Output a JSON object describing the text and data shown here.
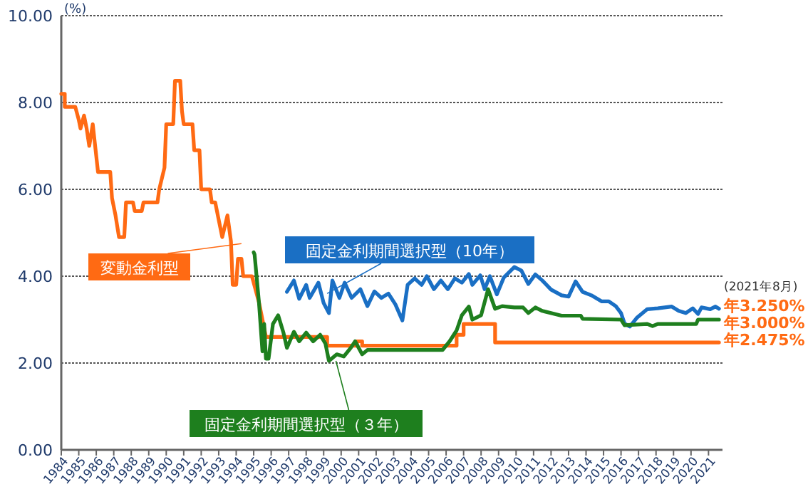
{
  "chart_data": {
    "type": "line",
    "ylabel": "(%)",
    "xlim": [
      1984,
      2021.8
    ],
    "ylim": [
      0,
      10
    ],
    "yticks": [
      {
        "value": 0,
        "label": "0.00"
      },
      {
        "value": 2,
        "label": "2.00"
      },
      {
        "value": 4,
        "label": "4.00"
      },
      {
        "value": 6,
        "label": "6.00"
      },
      {
        "value": 8,
        "label": "8.00"
      },
      {
        "value": 10,
        "label": "10.00"
      }
    ],
    "xticks": [
      1984,
      1985,
      1986,
      1987,
      1988,
      1989,
      1990,
      1991,
      1992,
      1993,
      1994,
      1995,
      1996,
      1997,
      1998,
      1999,
      2000,
      2001,
      2002,
      2003,
      2004,
      2005,
      2006,
      2007,
      2008,
      2009,
      2010,
      2011,
      2012,
      2013,
      2014,
      2015,
      2016,
      2017,
      2018,
      2019,
      2020,
      2021
    ],
    "grid": "y",
    "line_style": "solid",
    "marker": "none",
    "series": [
      {
        "name": "変動金利型",
        "color": "#ff6a13",
        "x": [
          1984,
          1984.2,
          1984.2,
          1984.8,
          1985,
          1985.1,
          1985.3,
          1985.45,
          1985.6,
          1985.8,
          1986.1,
          1986.8,
          1986.9,
          1987.1,
          1987.3,
          1987.6,
          1987.7,
          1988.1,
          1988.2,
          1988.6,
          1988.7,
          1989.5,
          1989.6,
          1989.9,
          1990,
          1990.4,
          1990.5,
          1990.8,
          1990.9,
          1991,
          1991.5,
          1991.6,
          1991.9,
          1992,
          1992.5,
          1992.6,
          1992.8,
          1993,
          1993.2,
          1993.5,
          1993.7,
          1993.8,
          1994,
          1994.1,
          1994.3,
          1994.4,
          1994.9,
          1995.3,
          1995.7,
          1999.2,
          1999.2,
          2000.9,
          2000.9,
          2001.2,
          2001.2,
          2006.6,
          2006.6,
          2007,
          2007,
          2008.8,
          2008.8,
          2021.6
        ],
        "values": [
          8.2,
          8.2,
          7.9,
          7.9,
          7.6,
          7.4,
          7.7,
          7.4,
          7,
          7.5,
          6.4,
          6.4,
          5.8,
          5.4,
          4.9,
          4.9,
          5.7,
          5.7,
          5.5,
          5.5,
          5.7,
          5.7,
          6,
          6.5,
          7.5,
          7.5,
          8.5,
          8.5,
          7.8,
          7.5,
          7.5,
          6.9,
          6.9,
          6,
          6,
          5.7,
          5.7,
          5.3,
          4.9,
          5.4,
          4.8,
          3.8,
          3.8,
          4.4,
          4.4,
          4,
          4,
          3.4,
          2.6,
          2.6,
          2.4,
          2.4,
          2.5,
          2.5,
          2.4,
          2.4,
          2.65,
          2.65,
          2.9,
          2.9,
          2.475,
          2.475
        ]
      },
      {
        "name": "固定金利期間選択型（10年）",
        "color": "#1a6fc4",
        "x": [
          1996.9,
          1997.3,
          1997.6,
          1998,
          1998.2,
          1998.7,
          1999,
          1999.3,
          1999.5,
          1999.9,
          2000.2,
          2000.6,
          2001.1,
          2001.5,
          2001.9,
          2002.3,
          2002.7,
          2003.1,
          2003.5,
          2003.8,
          2004.2,
          2004.6,
          2004.9,
          2005.3,
          2005.7,
          2006.1,
          2006.5,
          2006.9,
          2007.3,
          2007.5,
          2007.95,
          2008.2,
          2008.5,
          2008.9,
          2009.3,
          2009.9,
          2010.3,
          2010.7,
          2011.1,
          2011.5,
          2012,
          2012.6,
          2013,
          2013.4,
          2013.8,
          2014.3,
          2014.9,
          2015.3,
          2015.7,
          2016,
          2016.2,
          2016.5,
          2016.9,
          2017.5,
          2018.1,
          2018.9,
          2019.3,
          2019.7,
          2020.1,
          2020.4,
          2020.6,
          2021.1,
          2021.4,
          2021.6
        ],
        "values": [
          3.64,
          3.9,
          3.48,
          3.8,
          3.5,
          3.85,
          3.38,
          3.15,
          3.9,
          3.5,
          3.85,
          3.5,
          3.7,
          3.31,
          3.65,
          3.5,
          3.6,
          3.35,
          2.98,
          3.8,
          3.95,
          3.8,
          4,
          3.7,
          3.9,
          3.7,
          3.95,
          3.85,
          4.05,
          3.8,
          4.02,
          3.7,
          4,
          3.58,
          3.97,
          4.21,
          4.13,
          3.82,
          4.04,
          3.9,
          3.69,
          3.56,
          3.53,
          3.88,
          3.64,
          3.56,
          3.42,
          3.42,
          3.31,
          3.15,
          2.91,
          2.84,
          3.04,
          3.24,
          3.26,
          3.3,
          3.2,
          3.15,
          3.26,
          3.13,
          3.28,
          3.24,
          3.3,
          3.25
        ]
      },
      {
        "name": "固定金利期間選択型（３年）",
        "color": "#1e7f1e",
        "x": [
          1995,
          1995.05,
          1995.3,
          1995.5,
          1995.6,
          1995.7,
          1995.85,
          1996.1,
          1996.4,
          1996.7,
          1996.9,
          1997.3,
          1997.6,
          1998,
          1998.4,
          1998.8,
          1999.1,
          1999.3,
          1999.75,
          2000.15,
          2000.55,
          2000.8,
          2001.2,
          2001.5,
          2005.8,
          2006.2,
          2006.6,
          2006.9,
          2007.3,
          2007.5,
          2008,
          2008.4,
          2008.8,
          2009.2,
          2009.9,
          2010.4,
          2010.7,
          2011.1,
          2011.5,
          2012.6,
          2013.7,
          2013.8,
          2016,
          2016.2,
          2017.5,
          2017.8,
          2018.1,
          2020.3,
          2020.4,
          2021.6
        ],
        "values": [
          4.55,
          4.5,
          3.4,
          2.27,
          2.9,
          2.1,
          2.1,
          2.9,
          3.1,
          2.7,
          2.35,
          2.72,
          2.5,
          2.7,
          2.5,
          2.65,
          2.45,
          2.05,
          2.2,
          2.15,
          2.35,
          2.5,
          2.2,
          2.3,
          2.3,
          2.5,
          2.75,
          3.1,
          3.3,
          3,
          3.1,
          3.7,
          3.25,
          3.31,
          3.28,
          3.28,
          3.15,
          3.28,
          3.2,
          3.09,
          3.09,
          3.02,
          3,
          2.87,
          2.9,
          2.85,
          2.9,
          2.9,
          3,
          3
        ]
      }
    ],
    "annotations": [
      "(2021年8月)",
      "年3.250%",
      "年3.000%",
      "年2.475%"
    ]
  }
}
